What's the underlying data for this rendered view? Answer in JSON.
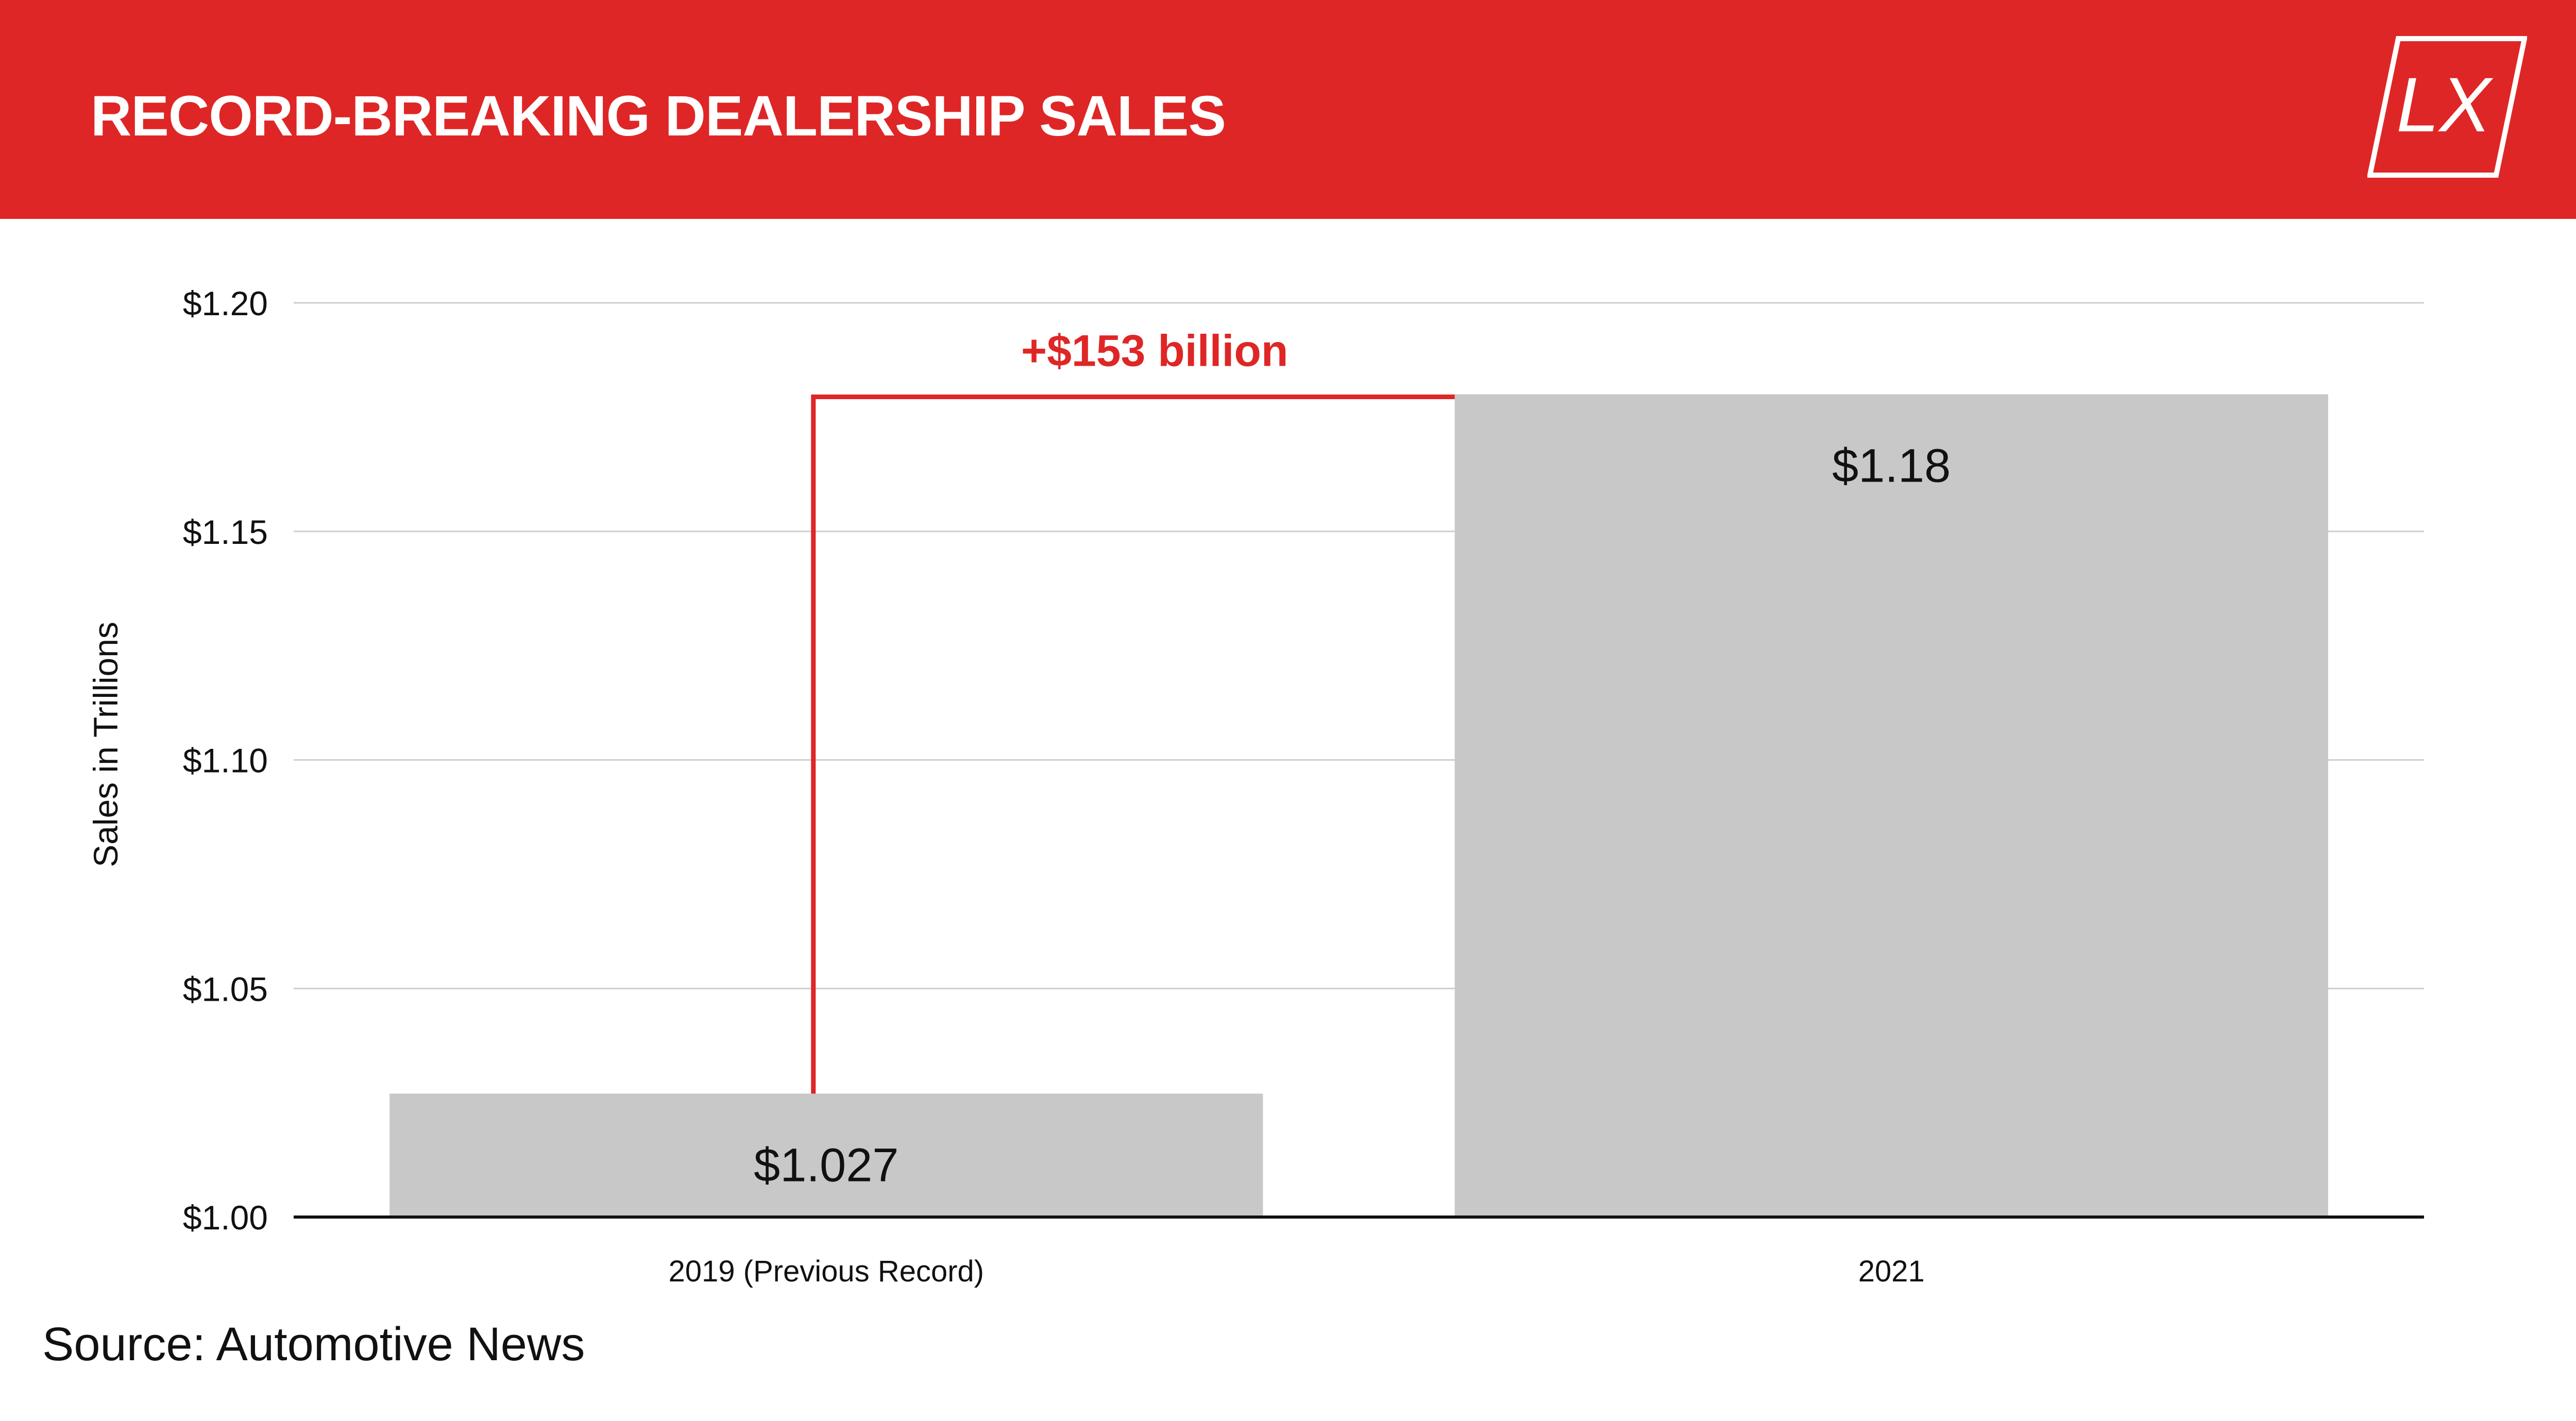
{
  "header": {
    "title": "RECORD-BREAKING DEALERSHIP SALES",
    "logo_text": "LX",
    "background_color": "#df2626"
  },
  "chart_data": {
    "type": "bar",
    "categories": [
      "2019 (Previous Record)",
      "2021"
    ],
    "values": [
      1.027,
      1.18
    ],
    "value_labels": [
      "$1.027",
      "$1.18"
    ],
    "title": "",
    "xlabel": "",
    "ylabel": "Sales in Trillions",
    "ylim": [
      1.0,
      1.2
    ],
    "yticks": [
      1.0,
      1.05,
      1.1,
      1.15,
      1.2
    ],
    "ytick_labels": [
      "$1.00",
      "$1.05",
      "$1.10",
      "$1.15",
      "$1.20"
    ],
    "grid": true,
    "bar_color": "#c8c8c8",
    "annotation": {
      "text": "+$153 billion",
      "from_category": 0,
      "to_category": 1,
      "color": "#df2626"
    }
  },
  "footer": {
    "source": "Source: Automotive News"
  }
}
